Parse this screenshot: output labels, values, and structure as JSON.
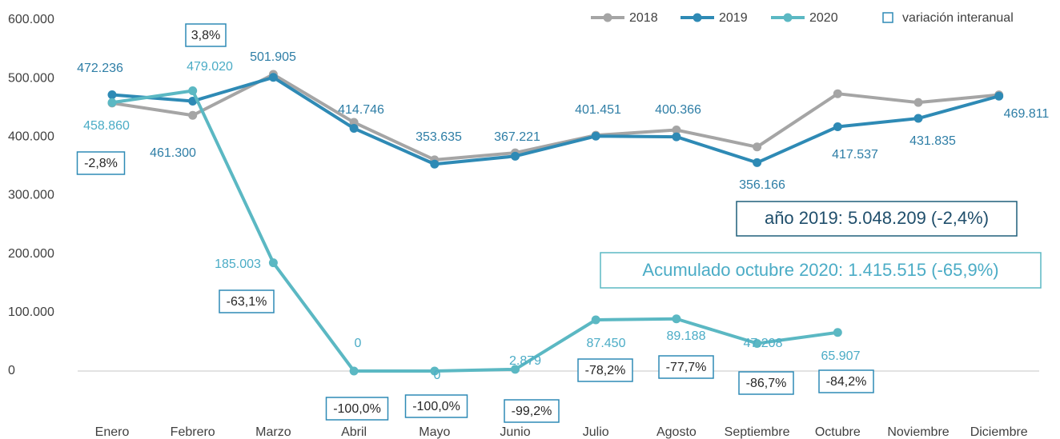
{
  "chart_data": {
    "type": "line",
    "categories": [
      "Enero",
      "Febrero",
      "Marzo",
      "Abril",
      "Mayo",
      "Junio",
      "Julio",
      "Agosto",
      "Septiembre",
      "Octubre",
      "Noviembre",
      "Diciembre"
    ],
    "series": [
      {
        "name": "2018",
        "color": "#a5a5a5",
        "values": [
          458000,
          437000,
          507000,
          425000,
          361000,
          373000,
          403000,
          412000,
          383000,
          474000,
          459000,
          472000
        ]
      },
      {
        "name": "2019",
        "color": "#2e8ab5",
        "values": [
          472236,
          461300,
          501905,
          414746,
          353635,
          367221,
          401451,
          400366,
          356166,
          417537,
          431835,
          469811
        ],
        "value_labels": [
          "472.236",
          "461.300",
          "501.905",
          "414.746",
          "353.635",
          "367.221",
          "401.451",
          "400.366",
          "356.166",
          "417.537",
          "431.835",
          "469.811"
        ]
      },
      {
        "name": "2020",
        "color": "#5bb8c3",
        "values": [
          458860,
          479020,
          185003,
          0,
          0,
          2879,
          87450,
          89188,
          47208,
          65907,
          null,
          null
        ],
        "value_labels": [
          "458.860",
          "479.020",
          "185.003",
          "0",
          "0",
          "2.879",
          "87.450",
          "89.188",
          "47.208",
          "65.907",
          null,
          null
        ]
      }
    ],
    "variation": {
      "name": "variación interanual",
      "color": "#2e8ab5",
      "values": [
        -2.8,
        3.8,
        -63.1,
        -100.0,
        -100.0,
        -99.2,
        -78.2,
        -77.7,
        -86.7,
        -84.2
      ],
      "value_labels": [
        "-2,8%",
        "3,8%",
        "-63,1%",
        "-100,0%",
        "-100,0%",
        "-99,2%",
        "-78,2%",
        "-77,7%",
        "-86,7%",
        "-84,2%"
      ]
    },
    "annotations": [
      "año 2019: 5.048.209 (-2,4%)",
      "Acumulado octubre 2020: 1.415.515 (-65,9%)"
    ],
    "ylim": [
      0,
      600000
    ],
    "yticks": [
      {
        "value": 0,
        "label": "0"
      },
      {
        "value": 100000,
        "label": "100.000"
      },
      {
        "value": 200000,
        "label": "200.000"
      },
      {
        "value": 300000,
        "label": "300.000"
      },
      {
        "value": 400000,
        "label": "400.000"
      },
      {
        "value": 500000,
        "label": "500.000"
      },
      {
        "value": 600000,
        "label": "600.000"
      }
    ],
    "grid": false,
    "legend": "top-right"
  }
}
